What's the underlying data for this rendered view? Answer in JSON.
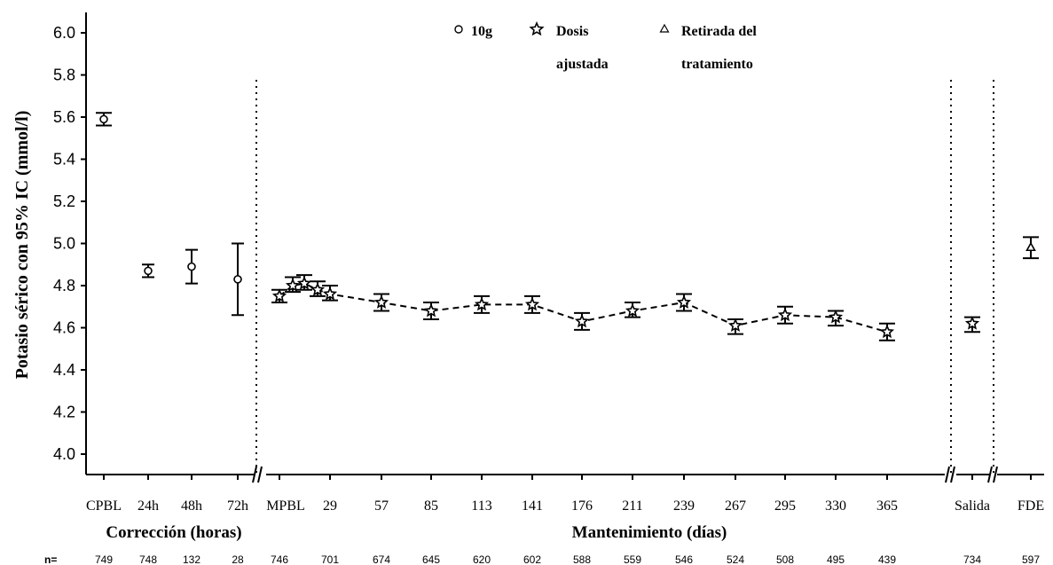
{
  "chart_data": {
    "type": "scatter",
    "ylabel": "Potasio sérico con 95% IC (mmol/l)",
    "ylim": [
      3.9,
      6.1
    ],
    "yticks": [
      4.0,
      4.2,
      4.4,
      4.6,
      4.8,
      5.0,
      5.2,
      5.4,
      5.6,
      5.8,
      6.0
    ],
    "ytick_labels": [
      "4.0",
      "4.2",
      "4.4",
      "4.6",
      "4.8",
      "5.0",
      "5.2",
      "5.4",
      "5.6",
      "5.8",
      "6.0"
    ],
    "grid": false,
    "legend": {
      "placement": "top-center",
      "entries": [
        {
          "marker": "circle",
          "label_lines": [
            "10g"
          ]
        },
        {
          "marker": "star",
          "label_lines": [
            "Dosis",
            "ajustada"
          ]
        },
        {
          "marker": "triangle",
          "label_lines": [
            "Retirada del",
            "tratamiento"
          ]
        }
      ]
    },
    "groups": [
      {
        "label": "Corrección (horas)"
      },
      {
        "label": "Mantenimiento (días)"
      }
    ],
    "n_label": "n=",
    "series": [
      {
        "marker": "circle",
        "points": [
          {
            "x": "CPBL",
            "y": 5.59,
            "lo": 5.56,
            "hi": 5.62,
            "n": "749"
          },
          {
            "x": "24h",
            "y": 4.87,
            "lo": 4.84,
            "hi": 4.9,
            "n": "748"
          },
          {
            "x": "48h",
            "y": 4.89,
            "lo": 4.81,
            "hi": 4.97,
            "n": "132"
          },
          {
            "x": "72h",
            "y": 4.83,
            "lo": 4.66,
            "hi": 5.0,
            "n": "28"
          }
        ]
      },
      {
        "marker": "star",
        "connected": true,
        "points": [
          {
            "x": "MPBL",
            "y": 4.75,
            "lo": 4.72,
            "hi": 4.78,
            "n": "746"
          },
          {
            "x": "",
            "y": 4.8,
            "lo": 4.77,
            "hi": 4.84,
            "n": ""
          },
          {
            "x": "",
            "y": 4.81,
            "lo": 4.78,
            "hi": 4.85,
            "n": ""
          },
          {
            "x": "",
            "y": 4.78,
            "lo": 4.75,
            "hi": 4.82,
            "n": ""
          },
          {
            "x": "29",
            "y": 4.76,
            "lo": 4.73,
            "hi": 4.8,
            "n": "701"
          },
          {
            "x": "57",
            "y": 4.72,
            "lo": 4.68,
            "hi": 4.76,
            "n": "674"
          },
          {
            "x": "85",
            "y": 4.68,
            "lo": 4.64,
            "hi": 4.72,
            "n": "645"
          },
          {
            "x": "113",
            "y": 4.71,
            "lo": 4.67,
            "hi": 4.75,
            "n": "620"
          },
          {
            "x": "141",
            "y": 4.71,
            "lo": 4.67,
            "hi": 4.75,
            "n": "602"
          },
          {
            "x": "176",
            "y": 4.63,
            "lo": 4.59,
            "hi": 4.67,
            "n": "588"
          },
          {
            "x": "211",
            "y": 4.68,
            "lo": 4.65,
            "hi": 4.72,
            "n": "559"
          },
          {
            "x": "239",
            "y": 4.72,
            "lo": 4.68,
            "hi": 4.76,
            "n": "546"
          },
          {
            "x": "267",
            "y": 4.61,
            "lo": 4.57,
            "hi": 4.64,
            "n": "524"
          },
          {
            "x": "295",
            "y": 4.66,
            "lo": 4.62,
            "hi": 4.7,
            "n": "508"
          },
          {
            "x": "330",
            "y": 4.65,
            "lo": 4.61,
            "hi": 4.68,
            "n": "495"
          },
          {
            "x": "365",
            "y": 4.58,
            "lo": 4.54,
            "hi": 4.62,
            "n": "439"
          },
          {
            "x": "Salida",
            "y": 4.62,
            "lo": 4.58,
            "hi": 4.65,
            "n": "734",
            "connected": false
          }
        ]
      },
      {
        "marker": "triangle",
        "points": [
          {
            "x": "FDE",
            "y": 4.98,
            "lo": 4.93,
            "hi": 5.03,
            "n": "597"
          }
        ]
      }
    ]
  }
}
